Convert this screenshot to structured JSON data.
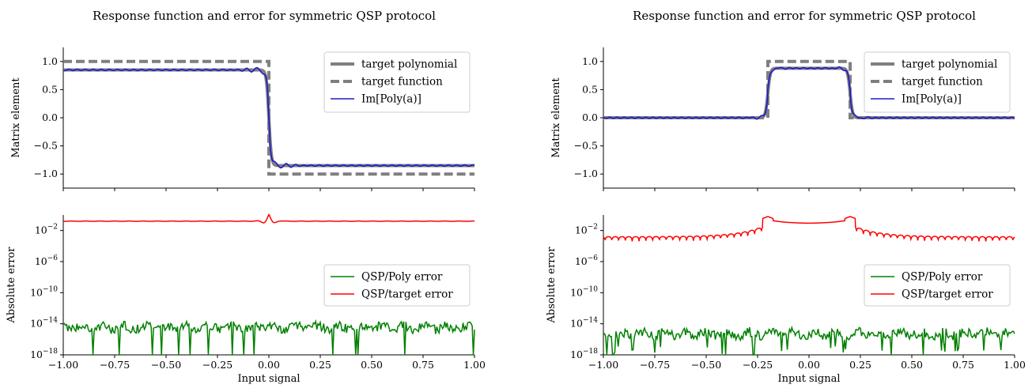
{
  "chart_data": [
    {
      "panel": "left-top",
      "type": "line",
      "title": "Response function and error for symmetric QSP protocol",
      "ylabel": "Matrix element",
      "xlim": [
        -1.0,
        1.0
      ],
      "ylim": [
        -1.25,
        1.25
      ],
      "yticks": [
        1.0,
        0.5,
        0.0,
        -0.5,
        -1.0
      ],
      "ytick_labels": [
        "1.0",
        "0.5",
        "0.0",
        "−0.5",
        "−1.0"
      ],
      "legend": {
        "position": "top-right",
        "entries": [
          "target polynomial",
          "target function",
          "Im[Poly(a)]"
        ]
      },
      "series": [
        {
          "name": "target polynomial",
          "style": "solid-thick",
          "color": "#7f7f7f",
          "x": [
            -1.0,
            -0.02,
            0.0,
            0.02,
            1.0
          ],
          "y": [
            0.85,
            0.85,
            0.0,
            -0.85,
            -0.85
          ]
        },
        {
          "name": "target function",
          "style": "dashed",
          "color": "#7f7f7f",
          "x": [
            -1.0,
            0.0,
            0.0,
            1.0
          ],
          "y": [
            1.0,
            1.0,
            -1.0,
            -1.0
          ]
        },
        {
          "name": "Im[Poly(a)]",
          "style": "solid",
          "color": "#1a1acc",
          "x": [
            -1.0,
            -0.1,
            -0.05,
            -0.02,
            0.0,
            0.02,
            0.05,
            0.1,
            1.0
          ],
          "y": [
            0.85,
            0.85,
            0.9,
            0.97,
            0.0,
            -0.97,
            -0.9,
            -0.85,
            -0.85
          ]
        }
      ]
    },
    {
      "panel": "left-bottom",
      "type": "line",
      "ylabel": "Absolute error",
      "xlabel": "Input signal",
      "yscale": "log",
      "xlim": [
        -1.0,
        1.0
      ],
      "ylim": [
        1e-18,
        1
      ],
      "yticks": [
        0.01,
        1e-06,
        1e-10,
        1e-14,
        1e-18
      ],
      "xticks": [
        -1.0,
        -0.75,
        -0.5,
        -0.25,
        0.0,
        0.25,
        0.5,
        0.75,
        1.0
      ],
      "xtick_labels": [
        "−1.00",
        "−0.75",
        "−0.50",
        "−0.25",
        "0.00",
        "0.25",
        "0.50",
        "0.75",
        "1.00"
      ],
      "legend": {
        "position": "right",
        "entries": [
          "QSP/Poly error",
          "QSP/target error"
        ]
      },
      "series": [
        {
          "name": "QSP/Poly error",
          "color": "#008000",
          "x": [
            -1.0,
            -0.5,
            0.0,
            0.5,
            1.0
          ],
          "y": [
            3e-15,
            3e-15,
            3e-15,
            3e-15,
            3e-15
          ]
        },
        {
          "name": "QSP/target error",
          "color": "#ff0000",
          "x": [
            -1.0,
            -0.05,
            0.0,
            0.05,
            1.0
          ],
          "y": [
            0.15,
            0.15,
            0.7,
            0.15,
            0.15
          ]
        }
      ]
    },
    {
      "panel": "right-top",
      "type": "line",
      "title": "Response function and error for symmetric QSP protocol",
      "ylabel": "Matrix element",
      "xlim": [
        -1.0,
        1.0
      ],
      "ylim": [
        -1.25,
        1.25
      ],
      "yticks": [
        1.0,
        0.5,
        0.0,
        -0.5,
        -1.0
      ],
      "ytick_labels": [
        "1.0",
        "0.5",
        "0.0",
        "−0.5",
        "−1.0"
      ],
      "legend": {
        "position": "top-right",
        "entries": [
          "target polynomial",
          "target function",
          "Im[Poly(a)]"
        ]
      },
      "series": [
        {
          "name": "target polynomial",
          "style": "solid-thick",
          "color": "#7f7f7f",
          "x": [
            -1.0,
            -0.22,
            -0.18,
            0.18,
            0.22,
            1.0
          ],
          "y": [
            0.0,
            0.0,
            0.88,
            0.88,
            0.0,
            0.0
          ]
        },
        {
          "name": "target function",
          "style": "dashed",
          "color": "#7f7f7f",
          "x": [
            -1.0,
            -0.2,
            -0.2,
            0.2,
            0.2,
            1.0
          ],
          "y": [
            0.0,
            0.0,
            1.0,
            1.0,
            0.0,
            0.0
          ]
        },
        {
          "name": "Im[Poly(a)]",
          "style": "solid",
          "color": "#1a1acc",
          "x": [
            -1.0,
            -0.22,
            -0.2,
            -0.17,
            0.0,
            0.17,
            0.2,
            0.22,
            1.0
          ],
          "y": [
            0.0,
            -0.05,
            0.45,
            0.92,
            0.88,
            0.92,
            0.45,
            -0.05,
            0.0
          ]
        }
      ]
    },
    {
      "panel": "right-bottom",
      "type": "line",
      "ylabel": "Absolute error",
      "xlabel": "Input signal",
      "yscale": "log",
      "xlim": [
        -1.0,
        1.0
      ],
      "ylim": [
        1e-18,
        1
      ],
      "yticks": [
        0.01,
        1e-06,
        1e-10,
        1e-14,
        1e-18
      ],
      "xticks": [
        -1.0,
        -0.75,
        -0.5,
        -0.25,
        0.0,
        0.25,
        0.5,
        0.75,
        1.0
      ],
      "xtick_labels": [
        "−1.00",
        "−0.75",
        "−0.50",
        "−0.25",
        "0.00",
        "0.25",
        "0.50",
        "0.75",
        "1.00"
      ],
      "legend": {
        "position": "right",
        "entries": [
          "QSP/Poly error",
          "QSP/target error"
        ]
      },
      "series": [
        {
          "name": "QSP/Poly error",
          "color": "#008000",
          "x": [
            -1.0,
            -0.5,
            0.0,
            0.5,
            1.0
          ],
          "y": [
            1e-15,
            1e-15,
            2e-15,
            1e-15,
            1e-15
          ]
        },
        {
          "name": "QSP/target error",
          "color": "#ff0000",
          "x": [
            -1.0,
            -0.25,
            -0.2,
            0.0,
            0.2,
            0.25,
            1.0
          ],
          "y": [
            0.002,
            0.02,
            0.5,
            0.1,
            0.5,
            0.02,
            0.002
          ]
        }
      ]
    }
  ]
}
